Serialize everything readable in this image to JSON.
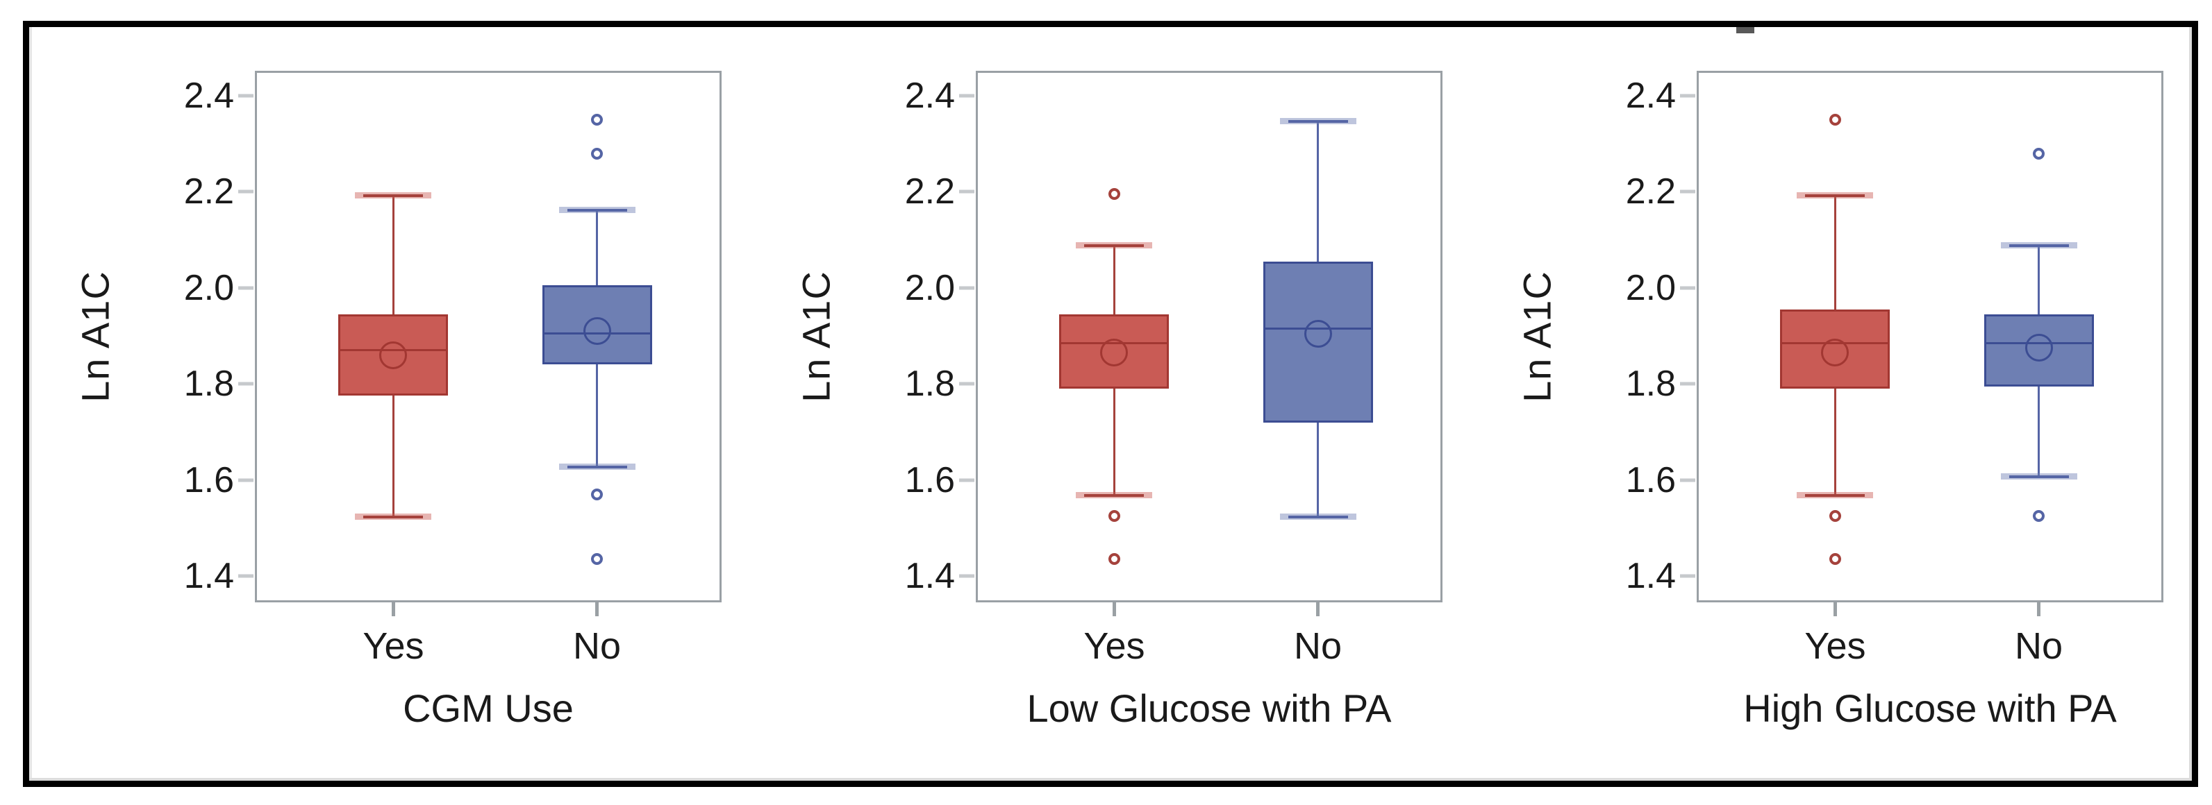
{
  "figure": {
    "background": "#ffffff",
    "border_color": "#000000"
  },
  "style": {
    "frame_color": "#9aa0a5",
    "y_tick_dash_color": "#c6c9cc",
    "x_tick_dash_color": "#9aa0a4",
    "text_color": "#1a1a1a",
    "series_colors": {
      "red": {
        "fill": "#c95b55",
        "stroke": "#a23732",
        "whisker": "#a5423c"
      },
      "blue": {
        "fill": "#6e7fb3",
        "stroke": "#3c4d93",
        "whisker": "#5565a5"
      }
    }
  },
  "chart_data": {
    "type": "boxplot",
    "title": "",
    "ylabel": "Ln A1C",
    "ylim": [
      1.345,
      2.452
    ],
    "grid": false,
    "legend_position": "none",
    "yticks": [
      {
        "value": 2.4,
        "label": "2.4"
      },
      {
        "value": 2.2,
        "label": "2.2"
      },
      {
        "value": 2.0,
        "label": "2.0"
      },
      {
        "value": 1.8,
        "label": "1.8"
      },
      {
        "value": 1.6,
        "label": "1.6"
      },
      {
        "value": 1.4,
        "label": "1.4"
      }
    ],
    "panels": [
      {
        "xlabel": "CGM Use",
        "categories": [
          "Yes",
          "No"
        ],
        "series": [
          {
            "category": "Yes",
            "color": "red",
            "whisker_low": 1.525,
            "q1": 1.775,
            "median": 1.87,
            "mean": 1.86,
            "q3": 1.945,
            "whisker_high": 2.195,
            "outliers": []
          },
          {
            "category": "No",
            "color": "blue",
            "whisker_low": 1.63,
            "q1": 1.84,
            "median": 1.905,
            "mean": 1.91,
            "q3": 2.005,
            "whisker_high": 2.165,
            "outliers": [
              2.35,
              2.28,
              1.57,
              1.435
            ]
          }
        ]
      },
      {
        "xlabel": "Low Glucose with PA",
        "categories": [
          "Yes",
          "No"
        ],
        "series": [
          {
            "category": "Yes",
            "color": "red",
            "whisker_low": 1.57,
            "q1": 1.79,
            "median": 1.885,
            "mean": 1.865,
            "q3": 1.945,
            "whisker_high": 2.09,
            "outliers": [
              2.195,
              1.525,
              1.435
            ]
          },
          {
            "category": "No",
            "color": "blue",
            "whisker_low": 1.525,
            "q1": 1.72,
            "median": 1.915,
            "mean": 1.905,
            "q3": 2.055,
            "whisker_high": 2.35,
            "outliers": []
          }
        ]
      },
      {
        "xlabel": "High Glucose with PA",
        "categories": [
          "Yes",
          "No"
        ],
        "series": [
          {
            "category": "Yes",
            "color": "red",
            "whisker_low": 1.57,
            "q1": 1.79,
            "median": 1.885,
            "mean": 1.865,
            "q3": 1.955,
            "whisker_high": 2.195,
            "outliers": [
              2.35,
              1.525,
              1.435
            ]
          },
          {
            "category": "No",
            "color": "blue",
            "whisker_low": 1.61,
            "q1": 1.795,
            "median": 1.885,
            "mean": 1.875,
            "q3": 1.945,
            "whisker_high": 2.09,
            "outliers": [
              2.28,
              1.525
            ]
          }
        ]
      }
    ]
  }
}
